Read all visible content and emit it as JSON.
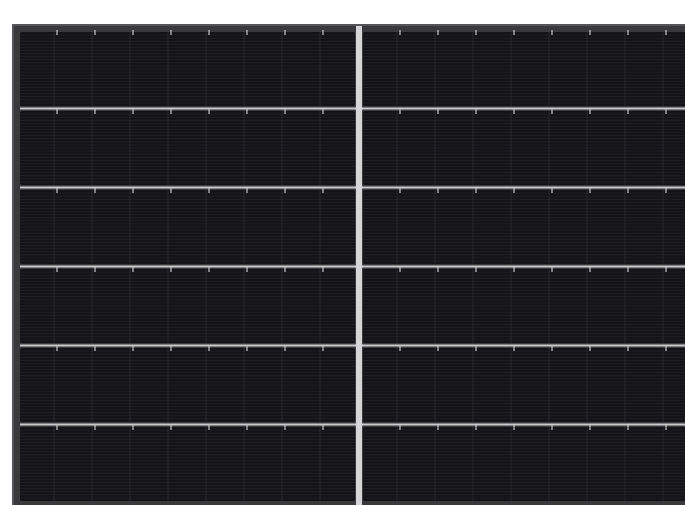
{
  "scene": {
    "subject": "solar-panel",
    "layout": {
      "halves": 2,
      "strips_per_half": 6,
      "fingers_per_strip": 9,
      "finger_lines_per_strip": 24,
      "cell_columns_per_half": 9
    },
    "colors": {
      "background": "#ffffff",
      "frame": "#3a3a3c",
      "cell": "#141318",
      "cell_line": "#26252b",
      "busbar": "#c9c9cc",
      "center_bar": "#d6d6d8"
    }
  }
}
